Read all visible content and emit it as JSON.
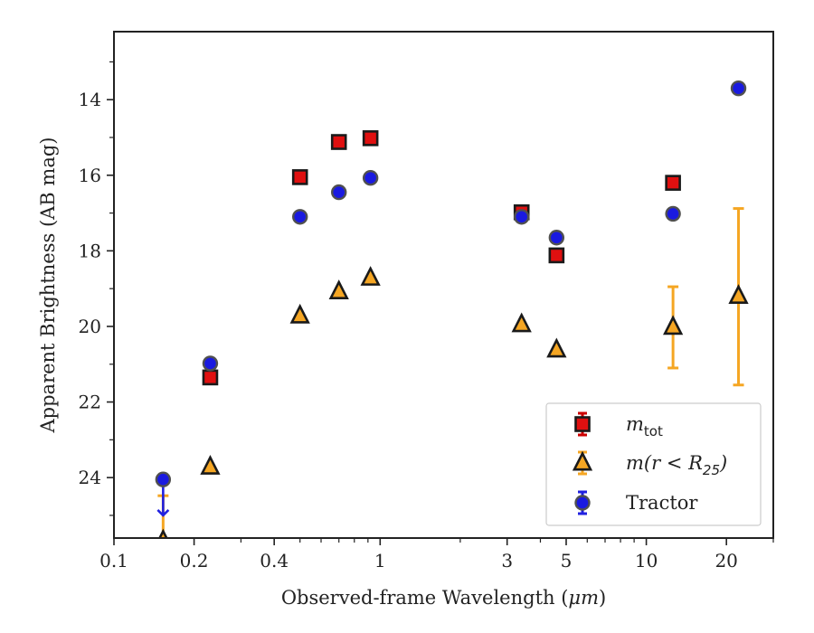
{
  "chart_data": {
    "type": "scatter",
    "xscale": "log",
    "yscale": "linear",
    "y_inverted": true,
    "xlim": [
      0.1,
      30
    ],
    "ylim": [
      25.6,
      12.2
    ],
    "xlabel_text": "Observed-frame Wavelength (",
    "xlabel_unit": "μm",
    "xlabel_close": ")",
    "ylabel": "Apparent Brightness (AB mag)",
    "x_major_ticks": [
      0.1,
      0.2,
      0.4,
      1,
      3,
      5,
      10,
      20
    ],
    "x_tick_labels": [
      "0.1",
      "0.2",
      "0.4",
      "1",
      "3",
      "5",
      "10",
      "20"
    ],
    "x_minor_ticks": [
      0.3,
      0.5,
      0.6,
      0.7,
      0.8,
      0.9,
      2,
      4,
      6,
      7,
      8,
      9,
      30
    ],
    "y_major_ticks": [
      14,
      16,
      18,
      20,
      22,
      24
    ],
    "y_tick_labels": [
      "14",
      "16",
      "18",
      "20",
      "22",
      "24"
    ],
    "y_minor_ticks": [
      13,
      15,
      17,
      19,
      21,
      23,
      25
    ],
    "series": [
      {
        "label_base": "m",
        "label_sub": "tot",
        "marker": "square",
        "color": "#e01010",
        "edge": "#1a1a1a",
        "errcolor": "#cc0000",
        "points": [
          {
            "x": 0.23,
            "y": 21.35
          },
          {
            "x": 0.5,
            "y": 16.05
          },
          {
            "x": 0.7,
            "y": 15.12
          },
          {
            "x": 0.92,
            "y": 15.02
          },
          {
            "x": 3.4,
            "y": 16.98
          },
          {
            "x": 4.6,
            "y": 18.12
          },
          {
            "x": 12.6,
            "y": 16.2
          }
        ]
      },
      {
        "label_math": "m(r < R",
        "label_sub": "25",
        "label_close": ")",
        "marker": "triangle",
        "color": "#f5a623",
        "edge": "#1a1a1a",
        "errcolor": "#f5a623",
        "points": [
          {
            "x": 0.153,
            "y": 25.6,
            "upper_limit": true,
            "err_top": 24.48
          },
          {
            "x": 0.23,
            "y": 23.72
          },
          {
            "x": 0.5,
            "y": 19.72
          },
          {
            "x": 0.7,
            "y": 19.08
          },
          {
            "x": 0.92,
            "y": 18.72
          },
          {
            "x": 3.4,
            "y": 19.95
          },
          {
            "x": 4.6,
            "y": 20.62
          },
          {
            "x": 12.6,
            "y": 20.02,
            "err_low": 18.95,
            "err_high": 21.1
          },
          {
            "x": 22.2,
            "y": 19.2,
            "err_low": 16.88,
            "err_high": 21.55
          }
        ]
      },
      {
        "label": "Tractor",
        "marker": "circle",
        "color": "#1a1ae0",
        "edge": "#505050",
        "errcolor": "#2020e0",
        "points": [
          {
            "x": 0.153,
            "y": 24.05,
            "upper_limit": true,
            "arrow_to": 25.0
          },
          {
            "x": 0.23,
            "y": 20.98
          },
          {
            "x": 0.5,
            "y": 17.1
          },
          {
            "x": 0.7,
            "y": 16.45
          },
          {
            "x": 0.92,
            "y": 16.07
          },
          {
            "x": 3.4,
            "y": 17.1
          },
          {
            "x": 4.6,
            "y": 17.65
          },
          {
            "x": 12.6,
            "y": 17.02
          },
          {
            "x": 22.2,
            "y": 13.7
          }
        ]
      }
    ],
    "legend_position": "lower-right",
    "grid": false
  }
}
